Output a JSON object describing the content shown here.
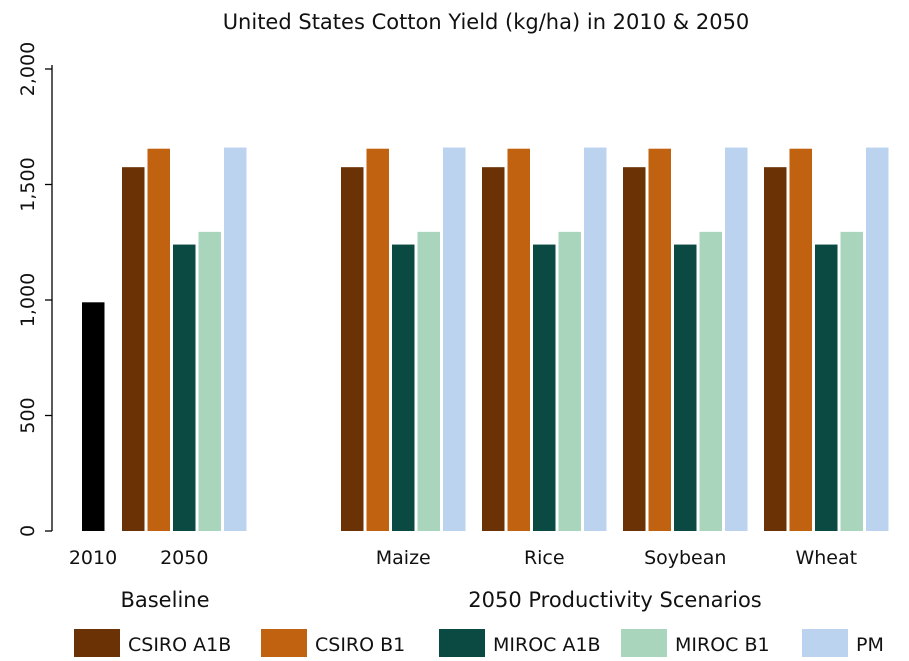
{
  "chart_data": {
    "type": "bar",
    "title": "United States Cotton Yield (kg/ha) in 2010 & 2050",
    "xlabel": "",
    "ylabel": "",
    "ylim": [
      0,
      2000
    ],
    "yticks": [
      0,
      500,
      1000,
      1500,
      2000
    ],
    "ytick_labels": [
      "0",
      "500",
      "1,000",
      "1,500",
      "2,000"
    ],
    "grid": false,
    "legend_position": "bottom",
    "groups": [
      {
        "label": "Baseline",
        "categories": [
          "2010",
          "2050"
        ]
      },
      {
        "label": "2050 Productivity Scenarios",
        "categories": [
          "Maize",
          "Rice",
          "Soybean",
          "Wheat"
        ]
      }
    ],
    "categories": [
      "2010",
      "2050",
      "Maize",
      "Rice",
      "Soybean",
      "Wheat"
    ],
    "baseline_2010": {
      "category": "2010",
      "value": 990,
      "color": "#000000"
    },
    "series": [
      {
        "name": "CSIRO A1B",
        "color": "#6b3206",
        "values": [
          null,
          1575,
          1575,
          1575,
          1575,
          1575
        ]
      },
      {
        "name": "CSIRO B1",
        "color": "#c0620f",
        "values": [
          null,
          1655,
          1655,
          1655,
          1655,
          1655
        ]
      },
      {
        "name": "MIROC A1B",
        "color": "#0b4a43",
        "values": [
          null,
          1240,
          1240,
          1240,
          1240,
          1240
        ]
      },
      {
        "name": "MIROC B1",
        "color": "#a9d5bd",
        "values": [
          null,
          1295,
          1295,
          1295,
          1295,
          1295
        ]
      },
      {
        "name": "PM",
        "color": "#bcd3ef",
        "values": [
          null,
          1660,
          1660,
          1660,
          1660,
          1660
        ]
      }
    ]
  }
}
